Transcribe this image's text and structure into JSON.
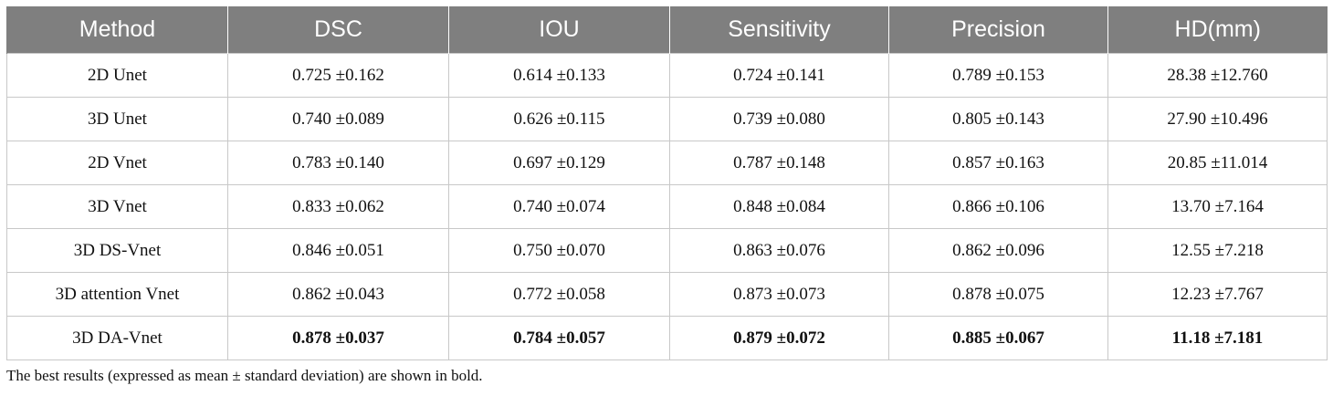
{
  "table": {
    "headers": [
      "Method",
      "DSC",
      "IOU",
      "Sensitivity",
      "Precision",
      "HD(mm)"
    ],
    "rows": [
      {
        "method": "2D Unet",
        "dsc": "0.725 ±0.162",
        "iou": "0.614 ±0.133",
        "sensitivity": "0.724 ±0.141",
        "precision": "0.789 ±0.153",
        "hd": "28.38 ±12.760"
      },
      {
        "method": "3D Unet",
        "dsc": "0.740 ±0.089",
        "iou": "0.626 ±0.115",
        "sensitivity": "0.739 ±0.080",
        "precision": "0.805 ±0.143",
        "hd": "27.90 ±10.496"
      },
      {
        "method": "2D Vnet",
        "dsc": "0.783 ±0.140",
        "iou": "0.697 ±0.129",
        "sensitivity": "0.787 ±0.148",
        "precision": "0.857 ±0.163",
        "hd": "20.85 ±11.014"
      },
      {
        "method": "3D Vnet",
        "dsc": "0.833 ±0.062",
        "iou": "0.740 ±0.074",
        "sensitivity": "0.848 ±0.084",
        "precision": "0.866 ±0.106",
        "hd": "13.70 ±7.164"
      },
      {
        "method": "3D DS-Vnet",
        "dsc": "0.846 ±0.051",
        "iou": "0.750 ±0.070",
        "sensitivity": "0.863 ±0.076",
        "precision": "0.862 ±0.096",
        "hd": "12.55 ±7.218"
      },
      {
        "method": "3D attention Vnet",
        "dsc": "0.862 ±0.043",
        "iou": "0.772 ±0.058",
        "sensitivity": "0.873 ±0.073",
        "precision": "0.878 ±0.075",
        "hd": "12.23 ±7.767"
      },
      {
        "method": "3D DA-Vnet",
        "dsc": "0.878 ±0.037",
        "iou": "0.784 ±0.057",
        "sensitivity": "0.879 ±0.072",
        "precision": "0.885 ±0.067",
        "hd": "11.18 ±7.181",
        "bold": true
      }
    ]
  },
  "footnote": "The best results (expressed as mean ± standard deviation) are shown in bold.",
  "colors": {
    "header_bg": "#7f7f7f",
    "header_text": "#ffffff",
    "grid": "#c8c8c8"
  }
}
